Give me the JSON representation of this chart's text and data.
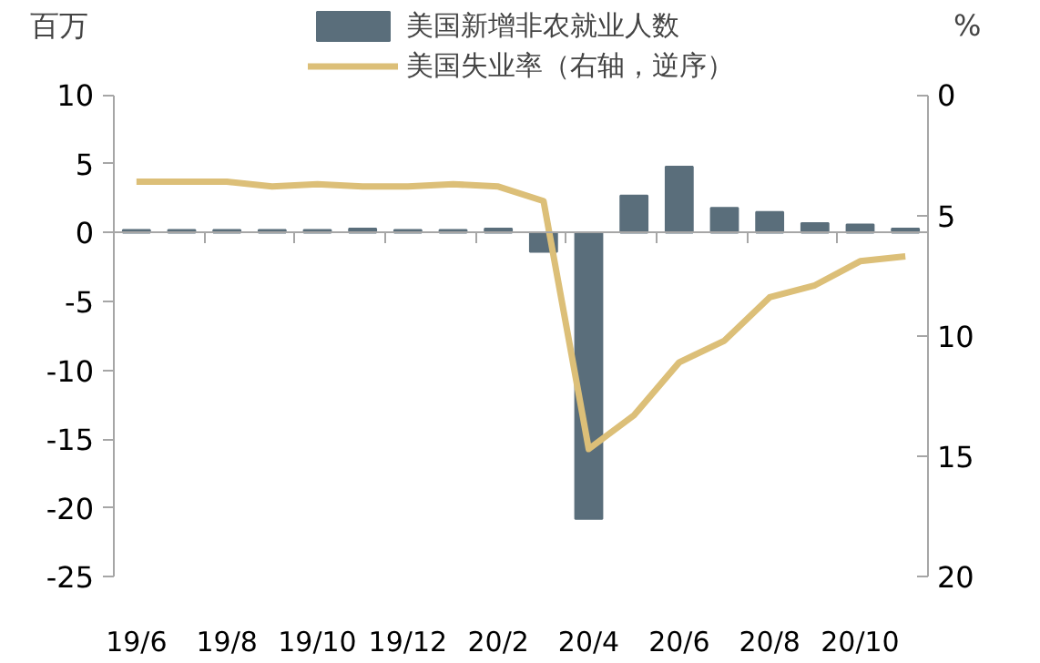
{
  "chart_data": {
    "type": "bar",
    "ylabel": "百万",
    "y2label": "%",
    "categories": [
      "19/6",
      null,
      "19/8",
      null,
      "19/10",
      null,
      "19/12",
      null,
      "20/2",
      null,
      "20/4",
      null,
      "20/6",
      null,
      "20/8",
      null,
      "20/10",
      null
    ],
    "series": [
      {
        "name": "美国新增非农就业人数",
        "color": "#5a6e7b",
        "values": [
          0.2,
          0.2,
          0.2,
          0.2,
          0.2,
          0.3,
          0.2,
          0.2,
          0.3,
          -1.4,
          -20.8,
          2.7,
          4.8,
          1.8,
          1.5,
          0.7,
          0.6,
          0.3
        ]
      },
      {
        "name": "美国失业率（右轴，逆序）",
        "type": "line",
        "axis": "y2",
        "color": "#dcbf78",
        "values": [
          3.6,
          3.6,
          3.6,
          3.8,
          3.7,
          3.8,
          3.8,
          3.7,
          3.8,
          4.4,
          14.7,
          13.3,
          11.1,
          10.2,
          8.4,
          7.9,
          6.9,
          6.7
        ]
      }
    ],
    "ylim": [
      -25,
      10
    ],
    "yticks": [
      -25,
      -20,
      -15,
      -10,
      -5,
      0,
      5,
      10
    ],
    "y2lim": [
      20,
      0
    ],
    "y2ticks": [
      0,
      5,
      10,
      15,
      20
    ],
    "legend": "top"
  }
}
